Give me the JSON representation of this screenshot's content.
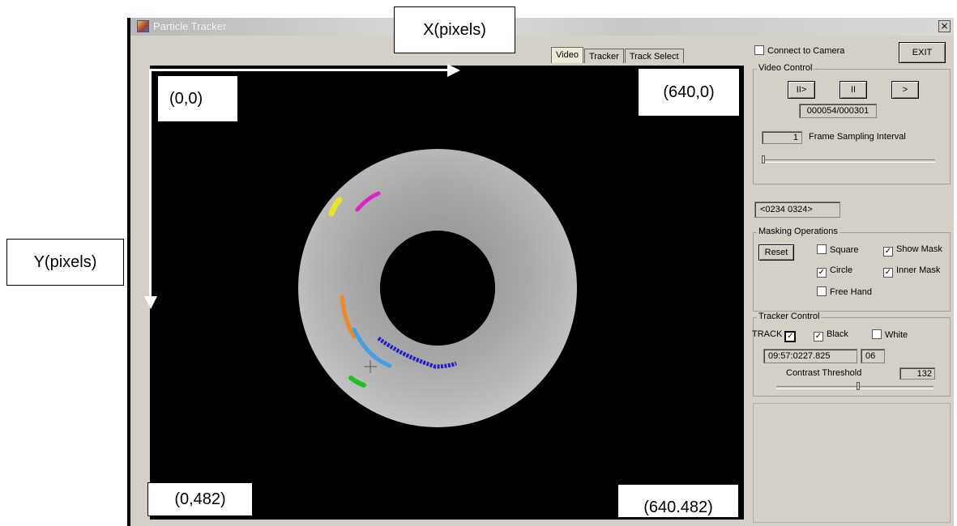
{
  "window": {
    "title": "Particle Tracker",
    "close_label": "×"
  },
  "tabs": [
    {
      "label": "Video",
      "active": true
    },
    {
      "label": "Tracker",
      "active": false
    },
    {
      "label": "Track Select",
      "active": false
    }
  ],
  "annotations": {
    "x_axis": "X(pixels)",
    "y_axis": "Y(pixels)",
    "top_left": "(0,0)",
    "top_right": "(640,0)",
    "bottom_left": "(0,482)",
    "bottom_right": "(640.482)"
  },
  "side_panel": {
    "connect_camera": {
      "label": "Connect to Camera",
      "checked": false
    },
    "exit_label": "EXIT",
    "video_control": {
      "title": "Video Control",
      "play_label": "II>",
      "pause_label": "II",
      "next_label": ">",
      "frame_counter": "000054/000301",
      "sampling_value": "1",
      "sampling_label": "Frame Sampling Interval",
      "sampling_slider_level": 0.0
    },
    "coordinates": "<0234 0324>",
    "masking": {
      "title": "Masking Operations",
      "reset_label": "Reset",
      "square": {
        "label": "Square",
        "checked": false
      },
      "show_mask": {
        "label": "Show Mask",
        "checked": true
      },
      "circle": {
        "label": "Circle",
        "checked": true
      },
      "inner_mask": {
        "label": "Inner Mask",
        "checked": true
      },
      "free_hand": {
        "label": "Free Hand",
        "checked": false
      }
    },
    "tracker": {
      "title": "Tracker Control",
      "track_label": "TRACK",
      "track_checked": true,
      "black": {
        "label": "Black",
        "checked": true
      },
      "white": {
        "label": "White",
        "checked": false
      },
      "time_value": "09:57:0227.825",
      "count_value": "06",
      "contrast_label": "Contrast Threshold",
      "contrast_value": "132",
      "contrast_slider_level": 0.52
    }
  },
  "colors": {
    "window_bg": "#d4d0c8",
    "video_bg": "#000000",
    "track_colors": [
      "#e6e620",
      "#e020c8",
      "#f08a20",
      "#40a0e8",
      "#2020d0",
      "#20c020"
    ]
  }
}
